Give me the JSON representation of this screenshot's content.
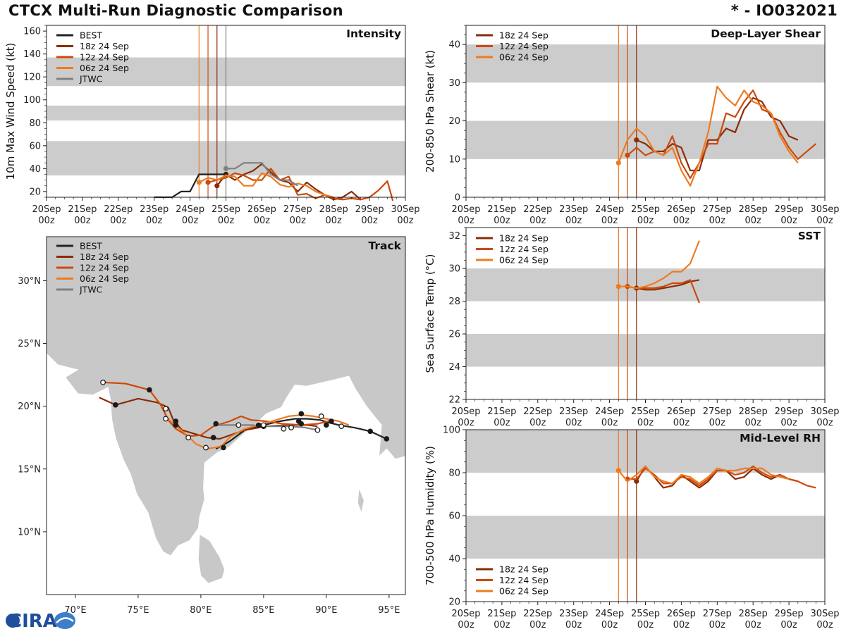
{
  "header": {
    "title": "CTCX Multi-Run Diagnostic Comparison",
    "storm_id": "* - IO032021"
  },
  "logo": {
    "text": "CIRA"
  },
  "colors": {
    "BEST": "#222222",
    "18z 24 Sep": "#8b2c05",
    "12z 24 Sep": "#cc4a0b",
    "06z 24 Sep": "#ee7b22",
    "JTWC": "#808080",
    "band": "#cccccc"
  },
  "time_axis": {
    "ticks": [
      "20Sep",
      "21Sep",
      "22Sep",
      "23Sep",
      "24Sep",
      "25Sep",
      "26Sep",
      "27Sep",
      "28Sep",
      "29Sep",
      "30Sep"
    ],
    "subticks": [
      "00z",
      "00z",
      "00z",
      "00z",
      "00z",
      "00z",
      "00z",
      "00z",
      "00z",
      "00z",
      "00z"
    ]
  },
  "chart_data": [
    {
      "id": "intensity",
      "type": "line",
      "title": "Intensity",
      "ylabel": "10m Max Wind Speed (kt)",
      "ylim": [
        15,
        165
      ],
      "yticks": [
        20,
        40,
        60,
        80,
        100,
        120,
        140,
        160
      ],
      "bands": [
        [
          34,
          64
        ],
        [
          82,
          95
        ],
        [
          112,
          137
        ]
      ],
      "init_lines": [
        {
          "t": 4.25,
          "run": "06z 24 Sep"
        },
        {
          "t": 4.5,
          "run": "12z 24 Sep"
        },
        {
          "t": 4.75,
          "run": "18z 24 Sep"
        },
        {
          "t": 5.0,
          "run": "JTWC"
        }
      ],
      "legend": [
        "BEST",
        "18z 24 Sep",
        "12z 24 Sep",
        "06z 24 Sep",
        "JTWC"
      ],
      "series": [
        {
          "name": "BEST",
          "t": [
            3.0,
            3.25,
            3.5,
            3.75,
            4.0,
            4.25,
            4.5,
            4.75,
            5.0
          ],
          "v": [
            15,
            15,
            15,
            20,
            20,
            35,
            35,
            35,
            35
          ],
          "marker": [
            5.0
          ]
        },
        {
          "name": "18z 24 Sep",
          "t": [
            4.75,
            5.0,
            5.25,
            5.5,
            5.75,
            6.0,
            6.25,
            6.5,
            6.75,
            7.0,
            7.25,
            7.5,
            7.75,
            8.0,
            8.25,
            8.5,
            8.75
          ],
          "v": [
            25,
            35,
            30,
            35,
            38,
            44,
            37,
            30,
            28,
            20,
            28,
            22,
            17,
            13,
            15,
            20,
            13
          ],
          "marker": [
            4.75
          ]
        },
        {
          "name": "12z 24 Sep",
          "t": [
            4.5,
            4.75,
            5.0,
            5.25,
            5.5,
            5.75,
            6.0,
            6.25,
            6.5,
            6.75,
            7.0,
            7.25,
            7.5,
            7.75,
            8.0,
            8.25,
            8.5,
            8.75,
            9.0,
            9.25,
            9.5,
            9.65
          ],
          "v": [
            28,
            30,
            32,
            36,
            34,
            30,
            30,
            40,
            30,
            33,
            17,
            18,
            14,
            17,
            14,
            13,
            14,
            13,
            15,
            21,
            29,
            12
          ],
          "marker": [
            4.5
          ]
        },
        {
          "name": "06z 24 Sep",
          "t": [
            4.25,
            4.5,
            4.75,
            5.0,
            5.25,
            5.5,
            5.75,
            6.0,
            6.25,
            6.5,
            6.75,
            7.0,
            7.25,
            7.5,
            7.75,
            8.0
          ],
          "v": [
            28,
            32,
            30,
            34,
            33,
            25,
            25,
            36,
            33,
            26,
            24,
            27,
            25,
            20,
            17,
            15
          ],
          "marker": [
            4.25
          ]
        },
        {
          "name": "JTWC",
          "t": [
            5.0,
            5.25,
            5.5,
            5.75,
            6.0,
            6.25,
            6.5,
            6.75,
            7.0
          ],
          "v": [
            40,
            40,
            45,
            45,
            45,
            35,
            30,
            30,
            25
          ],
          "marker": [
            5.0
          ]
        }
      ]
    },
    {
      "id": "shear",
      "type": "line",
      "title": "Deep-Layer Shear",
      "ylabel": "200-850 hPa Shear (kt)",
      "ylim": [
        0,
        45
      ],
      "yticks": [
        0,
        10,
        20,
        30,
        40
      ],
      "bands": [
        [
          10,
          20
        ],
        [
          30,
          40
        ]
      ],
      "init_lines": [
        {
          "t": 4.25,
          "run": "06z 24 Sep"
        },
        {
          "t": 4.5,
          "run": "12z 24 Sep"
        },
        {
          "t": 4.75,
          "run": "18z 24 Sep"
        }
      ],
      "legend": [
        "18z 24 Sep",
        "12z 24 Sep",
        "06z 24 Sep"
      ],
      "series": [
        {
          "name": "18z 24 Sep",
          "t": [
            4.75,
            5.0,
            5.25,
            5.5,
            5.75,
            6.0,
            6.25,
            6.5,
            6.75,
            7.0,
            7.25,
            7.5,
            7.75,
            8.0,
            8.25,
            8.5,
            8.75,
            9.0,
            9.25
          ],
          "v": [
            15,
            14,
            12,
            12,
            14,
            13,
            7,
            7,
            15,
            15,
            18,
            17,
            23,
            26,
            25,
            21,
            20,
            16,
            15
          ],
          "marker": [
            4.75
          ]
        },
        {
          "name": "12z 24 Sep",
          "t": [
            4.5,
            4.75,
            5.0,
            5.25,
            5.5,
            5.75,
            6.0,
            6.25,
            6.5,
            6.75,
            7.0,
            7.25,
            7.5,
            7.75,
            8.0,
            8.25,
            8.5,
            8.75,
            9.0,
            9.25,
            9.5,
            9.75
          ],
          "v": [
            11,
            13,
            11,
            12,
            11,
            16,
            9,
            5,
            9,
            14,
            14,
            22,
            21,
            25,
            28,
            23,
            22,
            17,
            13,
            10,
            12,
            14
          ],
          "marker": [
            4.5
          ]
        },
        {
          "name": "06z 24 Sep",
          "t": [
            4.25,
            4.5,
            4.75,
            5.0,
            5.25,
            5.5,
            5.75,
            6.0,
            6.25,
            6.5,
            6.75,
            7.0,
            7.25,
            7.5,
            7.75,
            8.0,
            8.25,
            8.5,
            8.75,
            9.0,
            9.25
          ],
          "v": [
            9,
            15,
            18,
            16,
            12,
            11,
            13,
            7,
            3,
            9,
            17,
            29,
            26,
            24,
            28,
            25,
            24,
            22,
            16,
            12,
            9
          ],
          "marker": [
            4.25
          ]
        }
      ]
    },
    {
      "id": "track",
      "type": "scatter",
      "title": "Track",
      "xlim": [
        67.7,
        96.3
      ],
      "ylim": [
        5.0,
        33.5
      ],
      "xticks": [
        70,
        75,
        80,
        85,
        90,
        95
      ],
      "xticklabels": [
        "70°E",
        "75°E",
        "80°E",
        "85°E",
        "90°E",
        "95°E"
      ],
      "yticks": [
        10,
        15,
        20,
        25,
        30
      ],
      "yticklabels": [
        "10°N",
        "15°N",
        "20°N",
        "25°N",
        "30°N"
      ],
      "legend": [
        "BEST",
        "18z 24 Sep",
        "12z 24 Sep",
        "06z 24 Sep",
        "JTWC"
      ],
      "series": [
        {
          "name": "BEST",
          "lon": [
            94.8,
            93.5,
            92.2,
            91.0,
            90.2,
            89.5,
            88.5,
            87.5,
            86.3,
            85.0,
            83.5,
            82.3,
            81.2
          ],
          "lat": [
            17.4,
            18.0,
            18.3,
            18.5,
            18.7,
            18.9,
            19.0,
            19.0,
            18.8,
            18.5,
            18.1,
            17.2,
            16.6
          ],
          "black_dots": [
            [
              94.8,
              17.4
            ],
            [
              93.5,
              18.0
            ],
            [
              90.0,
              18.5
            ],
            [
              87.8,
              18.8
            ],
            [
              81.8,
              16.7
            ]
          ],
          "open_dots": []
        },
        {
          "name": "18z 24 Sep",
          "lon": [
            89.3,
            88.5,
            87.0,
            85.2,
            83.5,
            81.5,
            80.5,
            79.5,
            78.5,
            77.8,
            77.4,
            76.5,
            75.0,
            73.2,
            71.9
          ],
          "lat": [
            18.4,
            18.5,
            18.5,
            18.4,
            18.1,
            17.4,
            17.5,
            17.8,
            18.1,
            18.9,
            19.9,
            20.3,
            20.6,
            20.1,
            20.7
          ],
          "black_dots": [
            [
              88.0,
              18.6
            ],
            [
              85.0,
              18.4
            ],
            [
              81.0,
              17.5
            ],
            [
              78.0,
              18.5
            ],
            [
              73.2,
              20.1
            ]
          ],
          "open_dots": []
        },
        {
          "name": "12z 24 Sep",
          "lon": [
            90.2,
            89.3,
            88.0,
            86.5,
            85.2,
            84.0,
            83.2,
            82.3,
            81.0,
            80.0,
            79.0,
            78.0,
            77.4,
            76.8,
            75.9,
            74.0,
            72.2
          ],
          "lat": [
            18.8,
            18.6,
            18.5,
            18.6,
            18.8,
            18.9,
            19.2,
            18.8,
            18.4,
            17.7,
            17.6,
            18.2,
            18.9,
            20.1,
            21.3,
            21.8,
            21.9
          ],
          "black_dots": [
            [
              90.4,
              18.8
            ],
            [
              81.2,
              18.6
            ],
            [
              78.0,
              18.8
            ],
            [
              75.9,
              21.3
            ]
          ],
          "open_dots": [
            [
              72.2,
              21.9
            ],
            [
              77.2,
              19.8
            ]
          ]
        },
        {
          "name": "06z 24 Sep",
          "lon": [
            91.8,
            91.0,
            90.0,
            89.0,
            88.0,
            87.0,
            86.0,
            84.6,
            83.5,
            82.4,
            81.6,
            80.5,
            79.6,
            79.0,
            78.3,
            77.6,
            77.2
          ],
          "lat": [
            18.5,
            18.8,
            19.0,
            19.2,
            19.3,
            19.2,
            18.9,
            18.5,
            18.2,
            17.6,
            16.8,
            16.6,
            17.0,
            17.6,
            18.2,
            18.8,
            19.2
          ],
          "black_dots": [
            [
              88.0,
              19.4
            ],
            [
              84.6,
              18.5
            ]
          ],
          "open_dots": [
            [
              89.6,
              19.2
            ],
            [
              91.2,
              18.4
            ],
            [
              86.6,
              18.2
            ],
            [
              80.4,
              16.7
            ],
            [
              79.0,
              17.5
            ],
            [
              77.2,
              19.0
            ]
          ]
        },
        {
          "name": "JTWC",
          "lon": [
            89.3,
            88.3,
            87.0,
            85.5,
            84.0,
            82.5,
            81.2
          ],
          "lat": [
            18.1,
            18.3,
            18.4,
            18.4,
            18.5,
            18.5,
            18.5
          ],
          "black_dots": [],
          "open_dots": [
            [
              89.3,
              18.1
            ],
            [
              87.2,
              18.3
            ],
            [
              85.0,
              18.5
            ],
            [
              83.0,
              18.5
            ]
          ]
        }
      ]
    },
    {
      "id": "sst",
      "type": "line",
      "title": "SST",
      "ylabel": "Sea Surface Temp (°C)",
      "ylim": [
        22,
        32.5
      ],
      "yticks": [
        22,
        24,
        26,
        28,
        30,
        32
      ],
      "bands": [
        [
          24,
          26
        ],
        [
          28,
          30
        ]
      ],
      "init_lines": [
        {
          "t": 4.25,
          "run": "06z 24 Sep"
        },
        {
          "t": 4.5,
          "run": "12z 24 Sep"
        },
        {
          "t": 4.75,
          "run": "18z 24 Sep"
        }
      ],
      "legend": [
        "18z 24 Sep",
        "12z 24 Sep",
        "06z 24 Sep"
      ],
      "series": [
        {
          "name": "18z 24 Sep",
          "t": [
            4.75,
            5.0,
            5.25,
            5.5,
            5.75,
            6.0,
            6.25,
            6.5
          ],
          "v": [
            28.8,
            28.7,
            28.7,
            28.8,
            28.9,
            29.0,
            29.2,
            29.3
          ],
          "marker": [
            4.75
          ]
        },
        {
          "name": "12z 24 Sep",
          "t": [
            4.5,
            4.75,
            5.0,
            5.25,
            5.5,
            5.75,
            6.0,
            6.25,
            6.5
          ],
          "v": [
            28.9,
            28.8,
            28.8,
            28.8,
            28.9,
            29.1,
            29.1,
            29.3,
            27.9
          ],
          "marker": [
            4.5
          ]
        },
        {
          "name": "06z 24 Sep",
          "t": [
            4.25,
            4.5,
            4.75,
            5.0,
            5.25,
            5.5,
            5.75,
            6.0,
            6.25,
            6.5
          ],
          "v": [
            28.9,
            28.9,
            28.8,
            28.9,
            29.1,
            29.4,
            29.8,
            29.8,
            30.3,
            31.7
          ],
          "marker": [
            4.25
          ]
        }
      ]
    },
    {
      "id": "rh",
      "type": "line",
      "title": "Mid-Level RH",
      "ylabel": "700-500 hPa Humidity (%)",
      "ylim": [
        20,
        100
      ],
      "yticks": [
        20,
        40,
        60,
        80,
        100
      ],
      "bands": [
        [
          40,
          60
        ],
        [
          80,
          100
        ]
      ],
      "init_lines": [
        {
          "t": 4.25,
          "run": "06z 24 Sep"
        },
        {
          "t": 4.5,
          "run": "12z 24 Sep"
        },
        {
          "t": 4.75,
          "run": "18z 24 Sep"
        }
      ],
      "legend": [
        "18z 24 Sep",
        "12z 24 Sep",
        "06z 24 Sep"
      ],
      "series": [
        {
          "name": "18z 24 Sep",
          "t": [
            4.75,
            5.0,
            5.25,
            5.5,
            5.75,
            6.0,
            6.25,
            6.5,
            6.75,
            7.0,
            7.25,
            7.5,
            7.75,
            8.0,
            8.25,
            8.5,
            8.75,
            9.0,
            9.25
          ],
          "v": [
            76,
            83,
            78,
            73,
            74,
            79,
            76,
            73,
            76,
            81,
            81,
            77,
            78,
            82,
            79,
            77,
            79,
            77,
            76
          ],
          "marker": [
            4.75
          ]
        },
        {
          "name": "12z 24 Sep",
          "t": [
            4.5,
            4.75,
            5.0,
            5.25,
            5.5,
            5.75,
            6.0,
            6.25,
            6.5,
            6.75,
            7.0,
            7.25,
            7.5,
            7.75,
            8.0,
            8.25,
            8.5,
            8.75,
            9.0,
            9.25,
            9.5,
            9.75
          ],
          "v": [
            77,
            77,
            82,
            79,
            75,
            75,
            78,
            77,
            74,
            77,
            81,
            81,
            79,
            80,
            83,
            80,
            78,
            79,
            77,
            76,
            74,
            73
          ],
          "marker": [
            4.5
          ]
        },
        {
          "name": "06z 24 Sep",
          "t": [
            4.25,
            4.5,
            4.75,
            5.0,
            5.25,
            5.5,
            5.75,
            6.0,
            6.25,
            6.5,
            6.75,
            7.0,
            7.25,
            7.5,
            7.75,
            8.0,
            8.25,
            8.5,
            8.75,
            9.0
          ],
          "v": [
            81,
            76,
            79,
            83,
            78,
            76,
            75,
            79,
            78,
            75,
            78,
            82,
            81,
            81,
            82,
            82,
            82,
            79,
            78,
            77
          ],
          "marker": [
            4.25
          ]
        }
      ]
    }
  ]
}
